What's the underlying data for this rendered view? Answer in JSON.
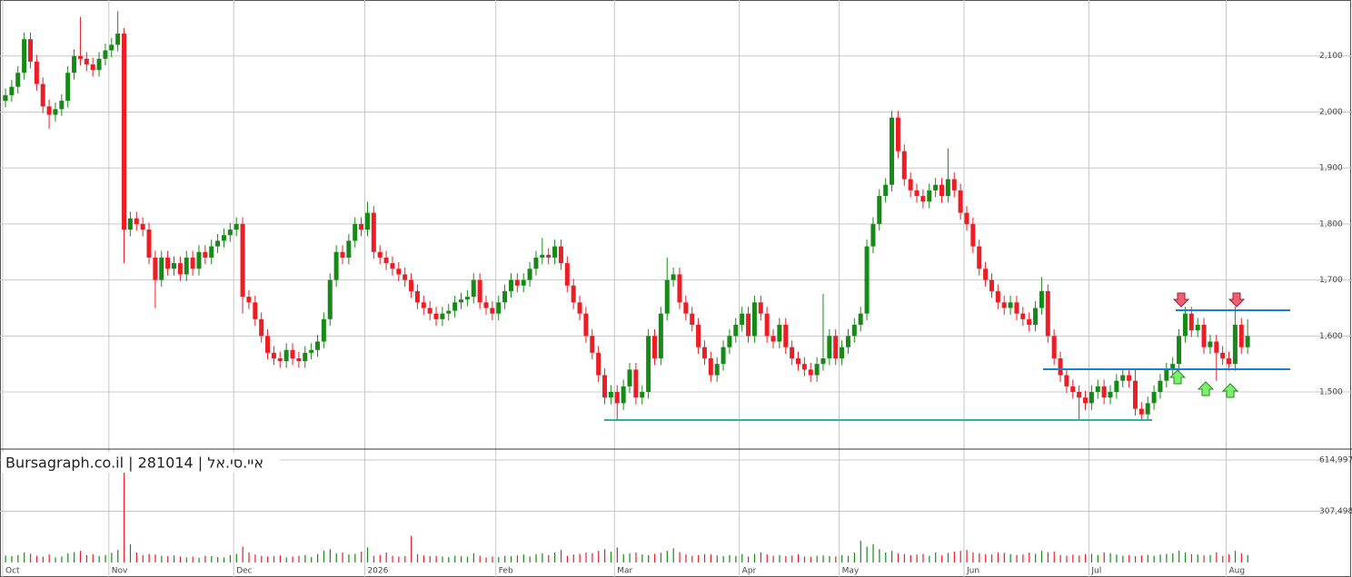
{
  "chart_data": {
    "type": "candlestick",
    "title": "Bursagraph.co.il | 281014 | איי.סי.אל",
    "categories": [
      "Oct",
      null,
      null,
      null,
      null,
      null,
      null,
      null,
      null,
      null,
      null,
      null,
      null,
      null,
      null,
      null,
      null,
      "Nov",
      null,
      null,
      null,
      null,
      null,
      null,
      null,
      null,
      null,
      null,
      null,
      null,
      null,
      null,
      null,
      null,
      null,
      null,
      null,
      "Dec",
      null,
      null,
      null,
      null,
      null,
      null,
      null,
      null,
      null,
      null,
      null,
      null,
      null,
      null,
      null,
      null,
      null,
      null,
      null,
      null,
      "2026",
      null,
      null,
      null,
      null,
      null,
      null,
      null,
      null,
      null,
      null,
      null,
      null,
      null,
      null,
      null,
      null,
      null,
      null,
      null,
      null,
      "Feb",
      null,
      null,
      null,
      null,
      null,
      null,
      null,
      null,
      null,
      null,
      null,
      null,
      null,
      null,
      null,
      null,
      null,
      null,
      "Mar",
      null,
      null,
      null,
      null,
      null,
      null,
      null,
      null,
      null,
      null,
      null,
      null,
      null,
      null,
      null,
      null,
      null,
      null,
      null,
      "Apr",
      null,
      null,
      null,
      null,
      null,
      null,
      null,
      null,
      null,
      null,
      null,
      null,
      null,
      null,
      null,
      "May",
      null,
      null,
      null,
      null,
      null,
      null,
      null,
      null,
      null,
      null,
      null,
      null,
      null,
      null,
      null,
      null,
      null,
      null,
      null,
      "Jun",
      null,
      null,
      null,
      null,
      null,
      null,
      null,
      null,
      null,
      null,
      null,
      null,
      null,
      null,
      null,
      null,
      null,
      null,
      null,
      "Jul",
      null,
      null,
      null,
      null,
      null,
      null,
      null,
      null,
      null,
      null,
      null,
      null,
      null,
      null,
      null,
      null,
      null,
      null,
      null,
      null,
      null,
      "Aug",
      null,
      null,
      null
    ],
    "open": [
      2020,
      2030,
      2045,
      2070,
      2130,
      2090,
      2050,
      2010,
      1995,
      2005,
      2020,
      2070,
      2100,
      2095,
      2085,
      2075,
      2095,
      2110,
      2120,
      2140,
      1790,
      1810,
      1800,
      1790,
      1740,
      1700,
      1740,
      1720,
      1730,
      1710,
      1740,
      1720,
      1750,
      1740,
      1760,
      1770,
      1780,
      1790,
      1800,
      1670,
      1660,
      1630,
      1600,
      1570,
      1560,
      1555,
      1575,
      1560,
      1555,
      1570,
      1575,
      1590,
      1630,
      1700,
      1750,
      1740,
      1770,
      1800,
      1790,
      1820,
      1750,
      1740,
      1730,
      1720,
      1710,
      1700,
      1680,
      1660,
      1650,
      1640,
      1630,
      1640,
      1645,
      1660,
      1665,
      1670,
      1700,
      1660,
      1650,
      1640,
      1660,
      1680,
      1700,
      1690,
      1700,
      1720,
      1740,
      1745,
      1740,
      1760,
      1730,
      1690,
      1660,
      1640,
      1600,
      1570,
      1530,
      1490,
      1500,
      1480,
      1510,
      1540,
      1490,
      1500,
      1600,
      1560,
      1640,
      1700,
      1710,
      1660,
      1640,
      1620,
      1580,
      1560,
      1530,
      1550,
      1580,
      1600,
      1620,
      1640,
      1600,
      1660,
      1640,
      1600,
      1590,
      1620,
      1580,
      1560,
      1550,
      1540,
      1530,
      1550,
      1560,
      1600,
      1560,
      1580,
      1600,
      1620,
      1640,
      1760,
      1800,
      1850,
      1870,
      1990,
      1930,
      1880,
      1860,
      1850,
      1840,
      1860,
      1870,
      1850,
      1880,
      1860,
      1820,
      1800,
      1760,
      1720,
      1700,
      1680,
      1660,
      1650,
      1660,
      1640,
      1630,
      1620,
      1650,
      1680,
      1600,
      1560,
      1530,
      1510,
      1500,
      1490,
      1480,
      1500,
      1510,
      1490,
      1500,
      1520,
      1530,
      1520,
      1470,
      1460,
      1480,
      1500,
      1520,
      1540,
      1550,
      1600,
      1640,
      1610,
      1620,
      1580,
      1590,
      1570,
      1560,
      1550,
      1620,
      1580
    ],
    "high": [
      2042,
      2057,
      2082,
      2142,
      2142,
      2102,
      2062,
      2022,
      2017,
      2032,
      2082,
      2112,
      2170,
      2107,
      2097,
      2107,
      2122,
      2132,
      2180,
      2150,
      1822,
      1822,
      1812,
      1802,
      1752,
      1752,
      1752,
      1742,
      1742,
      1752,
      1752,
      1762,
      1762,
      1772,
      1782,
      1792,
      1802,
      1812,
      1812,
      1682,
      1672,
      1642,
      1612,
      1582,
      1572,
      1587,
      1587,
      1572,
      1582,
      1587,
      1602,
      1642,
      1712,
      1762,
      1762,
      1782,
      1812,
      1812,
      1840,
      1832,
      1762,
      1752,
      1742,
      1732,
      1722,
      1712,
      1692,
      1672,
      1662,
      1652,
      1652,
      1657,
      1672,
      1677,
      1682,
      1712,
      1712,
      1672,
      1662,
      1672,
      1692,
      1712,
      1712,
      1712,
      1732,
      1752,
      1775,
      1757,
      1772,
      1772,
      1742,
      1702,
      1672,
      1652,
      1612,
      1582,
      1542,
      1512,
      1512,
      1522,
      1552,
      1552,
      1512,
      1612,
      1612,
      1652,
      1740,
      1722,
      1722,
      1672,
      1652,
      1632,
      1592,
      1572,
      1562,
      1592,
      1612,
      1632,
      1652,
      1652,
      1672,
      1672,
      1652,
      1612,
      1632,
      1632,
      1592,
      1572,
      1562,
      1552,
      1562,
      1675,
      1612,
      1612,
      1592,
      1612,
      1632,
      1652,
      1772,
      1812,
      1862,
      1882,
      2002,
      2002,
      1942,
      1892,
      1872,
      1862,
      1872,
      1882,
      1882,
      1935,
      1892,
      1872,
      1832,
      1812,
      1772,
      1732,
      1712,
      1692,
      1672,
      1672,
      1672,
      1652,
      1642,
      1662,
      1705,
      1692,
      1612,
      1572,
      1542,
      1522,
      1512,
      1502,
      1512,
      1522,
      1522,
      1512,
      1532,
      1542,
      1542,
      1542,
      1482,
      1492,
      1512,
      1532,
      1552,
      1562,
      1612,
      1652,
      1652,
      1632,
      1632,
      1602,
      1602,
      1582,
      1572,
      1652,
      1632,
      1630
    ],
    "low": [
      2008,
      2018,
      2033,
      2058,
      2078,
      2038,
      1998,
      1970,
      1983,
      1993,
      2008,
      2058,
      2083,
      2073,
      2063,
      2063,
      2083,
      2098,
      2108,
      1730,
      1778,
      1788,
      1778,
      1728,
      1650,
      1688,
      1708,
      1708,
      1698,
      1698,
      1708,
      1708,
      1728,
      1728,
      1748,
      1758,
      1768,
      1778,
      1640,
      1648,
      1618,
      1588,
      1558,
      1548,
      1543,
      1543,
      1548,
      1543,
      1543,
      1558,
      1563,
      1578,
      1618,
      1688,
      1728,
      1728,
      1758,
      1778,
      1778,
      1738,
      1728,
      1718,
      1708,
      1698,
      1688,
      1668,
      1648,
      1638,
      1628,
      1618,
      1618,
      1628,
      1633,
      1648,
      1653,
      1658,
      1648,
      1638,
      1628,
      1628,
      1648,
      1668,
      1678,
      1678,
      1688,
      1708,
      1728,
      1728,
      1728,
      1718,
      1678,
      1648,
      1628,
      1588,
      1558,
      1518,
      1478,
      1478,
      1450,
      1468,
      1498,
      1478,
      1478,
      1488,
      1548,
      1548,
      1628,
      1688,
      1648,
      1628,
      1608,
      1568,
      1548,
      1518,
      1518,
      1538,
      1568,
      1588,
      1608,
      1588,
      1588,
      1628,
      1588,
      1578,
      1578,
      1568,
      1548,
      1538,
      1528,
      1518,
      1518,
      1538,
      1548,
      1548,
      1548,
      1568,
      1588,
      1608,
      1628,
      1748,
      1788,
      1838,
      1858,
      1918,
      1868,
      1848,
      1838,
      1828,
      1828,
      1848,
      1838,
      1838,
      1848,
      1808,
      1788,
      1748,
      1708,
      1688,
      1668,
      1648,
      1638,
      1638,
      1628,
      1618,
      1608,
      1608,
      1638,
      1588,
      1548,
      1518,
      1498,
      1488,
      1450,
      1468,
      1468,
      1488,
      1478,
      1478,
      1488,
      1508,
      1508,
      1458,
      1448,
      1448,
      1468,
      1488,
      1508,
      1528,
      1538,
      1588,
      1598,
      1598,
      1568,
      1568,
      1520,
      1548,
      1538,
      1538,
      1568,
      1568
    ],
    "close": [
      2030,
      2045,
      2070,
      2130,
      2090,
      2050,
      2010,
      1995,
      2005,
      2020,
      2070,
      2100,
      2095,
      2085,
      2075,
      2095,
      2110,
      2120,
      2140,
      1790,
      1810,
      1800,
      1790,
      1740,
      1700,
      1740,
      1720,
      1730,
      1710,
      1740,
      1720,
      1750,
      1740,
      1760,
      1770,
      1780,
      1790,
      1800,
      1670,
      1660,
      1630,
      1600,
      1570,
      1560,
      1555,
      1575,
      1560,
      1555,
      1570,
      1575,
      1590,
      1630,
      1700,
      1750,
      1740,
      1770,
      1800,
      1790,
      1820,
      1750,
      1740,
      1730,
      1720,
      1710,
      1700,
      1680,
      1660,
      1650,
      1640,
      1630,
      1640,
      1645,
      1660,
      1665,
      1670,
      1700,
      1660,
      1650,
      1640,
      1660,
      1680,
      1700,
      1690,
      1700,
      1720,
      1740,
      1745,
      1740,
      1760,
      1730,
      1690,
      1660,
      1640,
      1600,
      1570,
      1530,
      1490,
      1500,
      1480,
      1510,
      1540,
      1490,
      1500,
      1600,
      1560,
      1640,
      1700,
      1710,
      1660,
      1640,
      1620,
      1580,
      1560,
      1530,
      1550,
      1580,
      1600,
      1620,
      1640,
      1600,
      1660,
      1640,
      1600,
      1590,
      1620,
      1580,
      1560,
      1550,
      1540,
      1530,
      1550,
      1560,
      1600,
      1560,
      1580,
      1600,
      1620,
      1640,
      1760,
      1800,
      1850,
      1870,
      1990,
      1930,
      1880,
      1860,
      1850,
      1840,
      1860,
      1870,
      1850,
      1880,
      1860,
      1820,
      1800,
      1760,
      1720,
      1700,
      1680,
      1660,
      1650,
      1660,
      1640,
      1630,
      1620,
      1650,
      1680,
      1600,
      1560,
      1530,
      1510,
      1500,
      1490,
      1480,
      1500,
      1510,
      1490,
      1500,
      1520,
      1530,
      1520,
      1470,
      1460,
      1480,
      1500,
      1520,
      1540,
      1550,
      1600,
      1640,
      1610,
      1620,
      1580,
      1590,
      1570,
      1560,
      1550,
      1620,
      1580,
      1600
    ],
    "volume": [
      42000,
      38000,
      45000,
      60000,
      52000,
      40000,
      35000,
      48000,
      30000,
      36000,
      55000,
      62000,
      70000,
      44000,
      50000,
      38000,
      46000,
      58000,
      75000,
      545000,
      110000,
      60000,
      45000,
      52000,
      48000,
      40000,
      38000,
      42000,
      36000,
      30000,
      34000,
      28000,
      40000,
      38000,
      32000,
      30000,
      44000,
      52000,
      95000,
      60000,
      48000,
      40000,
      36000,
      38000,
      42000,
      30000,
      35000,
      40000,
      45000,
      32000,
      50000,
      70000,
      80000,
      55000,
      60000,
      48000,
      52000,
      65000,
      90000,
      40000,
      45000,
      60000,
      40000,
      35000,
      38000,
      160000,
      50000,
      42000,
      38000,
      40000,
      36000,
      32000,
      40000,
      38000,
      34000,
      55000,
      40000,
      30000,
      36000,
      32000,
      40000,
      38000,
      42000,
      48000,
      36000,
      50000,
      55000,
      44000,
      60000,
      75000,
      40000,
      48000,
      52000,
      60000,
      55000,
      70000,
      80000,
      65000,
      90000,
      50000,
      55000,
      60000,
      48000,
      45000,
      52000,
      58000,
      70000,
      85000,
      62000,
      50000,
      40000,
      44000,
      50000,
      48000,
      42000,
      38000,
      45000,
      40000,
      50000,
      36000,
      52000,
      60000,
      48000,
      40000,
      45000,
      38000,
      42000,
      50000,
      36000,
      34000,
      40000,
      42000,
      38000,
      36000,
      44000,
      40000,
      60000,
      130000,
      95000,
      110000,
      80000,
      60000,
      70000,
      55000,
      50000,
      45000,
      48000,
      52000,
      40000,
      60000,
      42000,
      58000,
      65000,
      70000,
      75000,
      60000,
      55000,
      50000,
      48000,
      62000,
      58000,
      50000,
      45000,
      48000,
      60000,
      52000,
      70000,
      62000,
      66000,
      45000,
      40000,
      48000,
      42000,
      50000,
      52000,
      45000,
      60000,
      55000,
      48000,
      40000,
      44000,
      38000,
      42000,
      46000,
      40000,
      48000,
      52000,
      55000,
      70000,
      60000,
      50000,
      48000,
      42000,
      45000,
      60000,
      40000,
      50000,
      70000,
      55000,
      45000
    ],
    "up_color": "#168a16",
    "down_color": "#ee1c25",
    "ylim": [
      1398,
      2200
    ],
    "yticks": [
      {
        "value": 1500,
        "label": "1,500"
      },
      {
        "value": 1600,
        "label": "1,600"
      },
      {
        "value": 1700,
        "label": "1,700"
      },
      {
        "value": 1800,
        "label": "1,800"
      },
      {
        "value": 1900,
        "label": "1,900"
      },
      {
        "value": 2000,
        "label": "2,000"
      },
      {
        "value": 2100,
        "label": "2,100"
      }
    ],
    "y2lim": [
      0,
      680000
    ],
    "y2ticks": [
      {
        "value": 307498,
        "label": "307,498"
      },
      {
        "value": 614997,
        "label": "614,997"
      }
    ],
    "grid": true
  }
}
